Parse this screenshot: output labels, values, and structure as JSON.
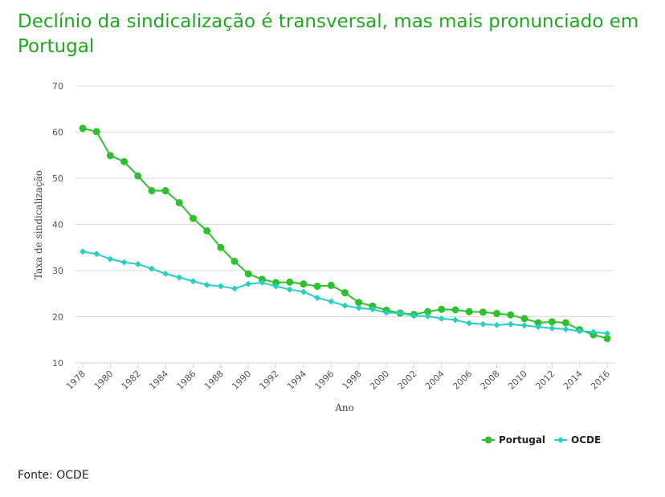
{
  "page": {
    "title": "Declínio da sindicalização é transversal, mas mais pronunciado em Portugal",
    "source": "Fonte: OCDE"
  },
  "colors": {
    "Portugal": "#2ec12e",
    "OCDE": "#26cfc0",
    "title": "#1fa81f",
    "grid": "#dcdcdc"
  },
  "chart_data": {
    "type": "line",
    "xlabel": "Ano",
    "ylabel": "Taxa de sindicalização",
    "ylim": [
      10,
      70
    ],
    "yticks": [
      10,
      20,
      30,
      40,
      50,
      60,
      70
    ],
    "xticks": [
      1978,
      1980,
      1982,
      1984,
      1986,
      1988,
      1990,
      1992,
      1994,
      1996,
      1998,
      2000,
      2002,
      2004,
      2006,
      2008,
      2010,
      2012,
      2014,
      2016
    ],
    "x": [
      1978,
      1979,
      1980,
      1981,
      1982,
      1983,
      1984,
      1985,
      1986,
      1987,
      1988,
      1989,
      1990,
      1991,
      1992,
      1993,
      1994,
      1995,
      1996,
      1997,
      1998,
      1999,
      2000,
      2001,
      2002,
      2003,
      2004,
      2005,
      2006,
      2007,
      2008,
      2009,
      2010,
      2011,
      2012,
      2013,
      2014,
      2015,
      2016
    ],
    "grid": "horizontal",
    "legend": "bottom-right",
    "series": [
      {
        "name": "Portugal",
        "marker": "circle",
        "values": [
          60.8,
          60.1,
          54.9,
          53.6,
          50.5,
          47.3,
          47.3,
          44.7,
          41.3,
          38.6,
          35.0,
          32.0,
          29.3,
          28.1,
          27.4,
          27.5,
          27.1,
          26.6,
          26.8,
          25.2,
          23.1,
          22.3,
          21.4,
          20.8,
          20.5,
          21.1,
          21.6,
          21.5,
          21.1,
          21.0,
          20.7,
          20.4,
          19.6,
          18.7,
          18.9,
          18.7,
          17.2,
          16.1,
          15.3
        ]
      },
      {
        "name": "OCDE",
        "marker": "diamond",
        "values": [
          34.1,
          33.6,
          32.5,
          31.8,
          31.4,
          30.4,
          29.3,
          28.5,
          27.7,
          26.9,
          26.6,
          26.1,
          27.1,
          27.4,
          26.6,
          25.9,
          25.4,
          24.1,
          23.3,
          22.4,
          21.9,
          21.6,
          20.9,
          20.8,
          20.2,
          20.1,
          19.6,
          19.3,
          18.6,
          18.4,
          18.2,
          18.4,
          18.1,
          17.8,
          17.5,
          17.3,
          16.9,
          16.7,
          16.4
        ]
      }
    ]
  }
}
